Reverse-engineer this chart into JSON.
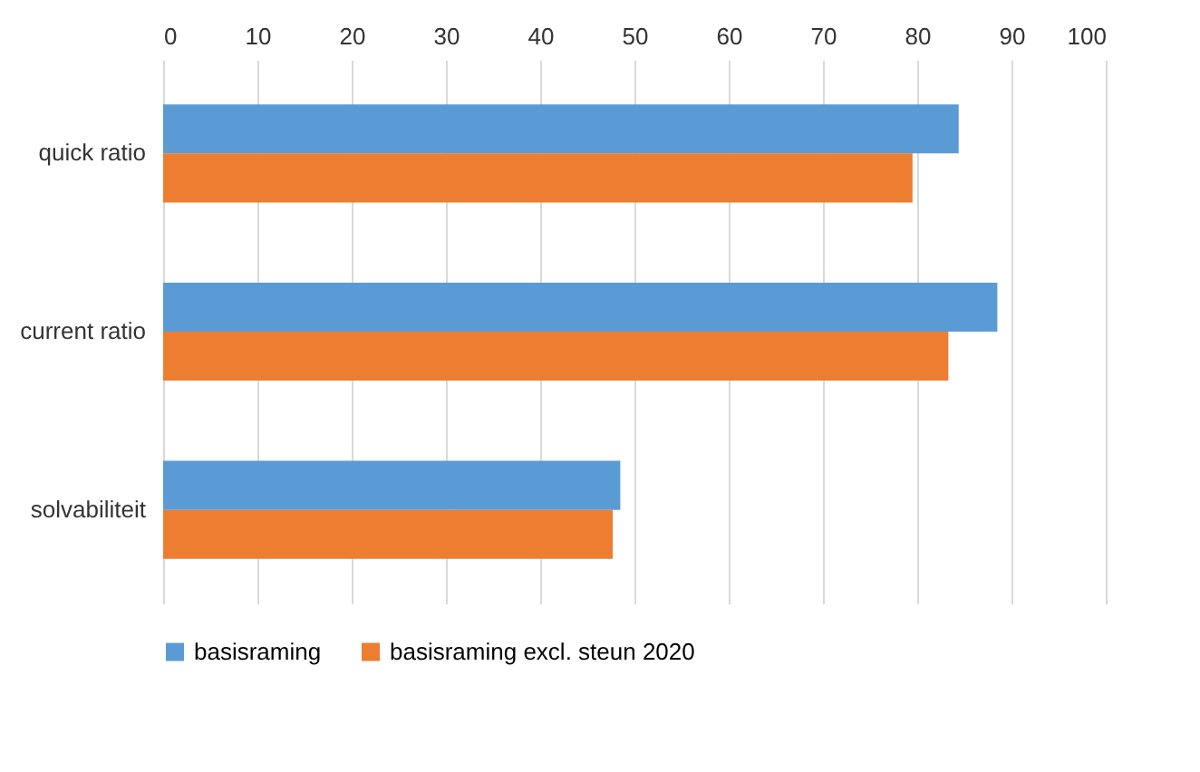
{
  "chart_data": {
    "type": "bar",
    "orientation": "horizontal",
    "categories": [
      "quick ratio",
      "current ratio",
      "solvabiliteit"
    ],
    "series": [
      {
        "name": "basisraming",
        "color": "#5b9bd5",
        "values": [
          84.4,
          88.5,
          48.5
        ]
      },
      {
        "name": "basisraming excl. steun 2020",
        "color": "#ed7d31",
        "values": [
          79.5,
          83.3,
          47.7
        ]
      }
    ],
    "xlim": [
      0,
      100
    ],
    "xticks": [
      0,
      10,
      20,
      30,
      40,
      50,
      60,
      70,
      80,
      90,
      100
    ],
    "grid": "x",
    "legend": "bottom"
  }
}
